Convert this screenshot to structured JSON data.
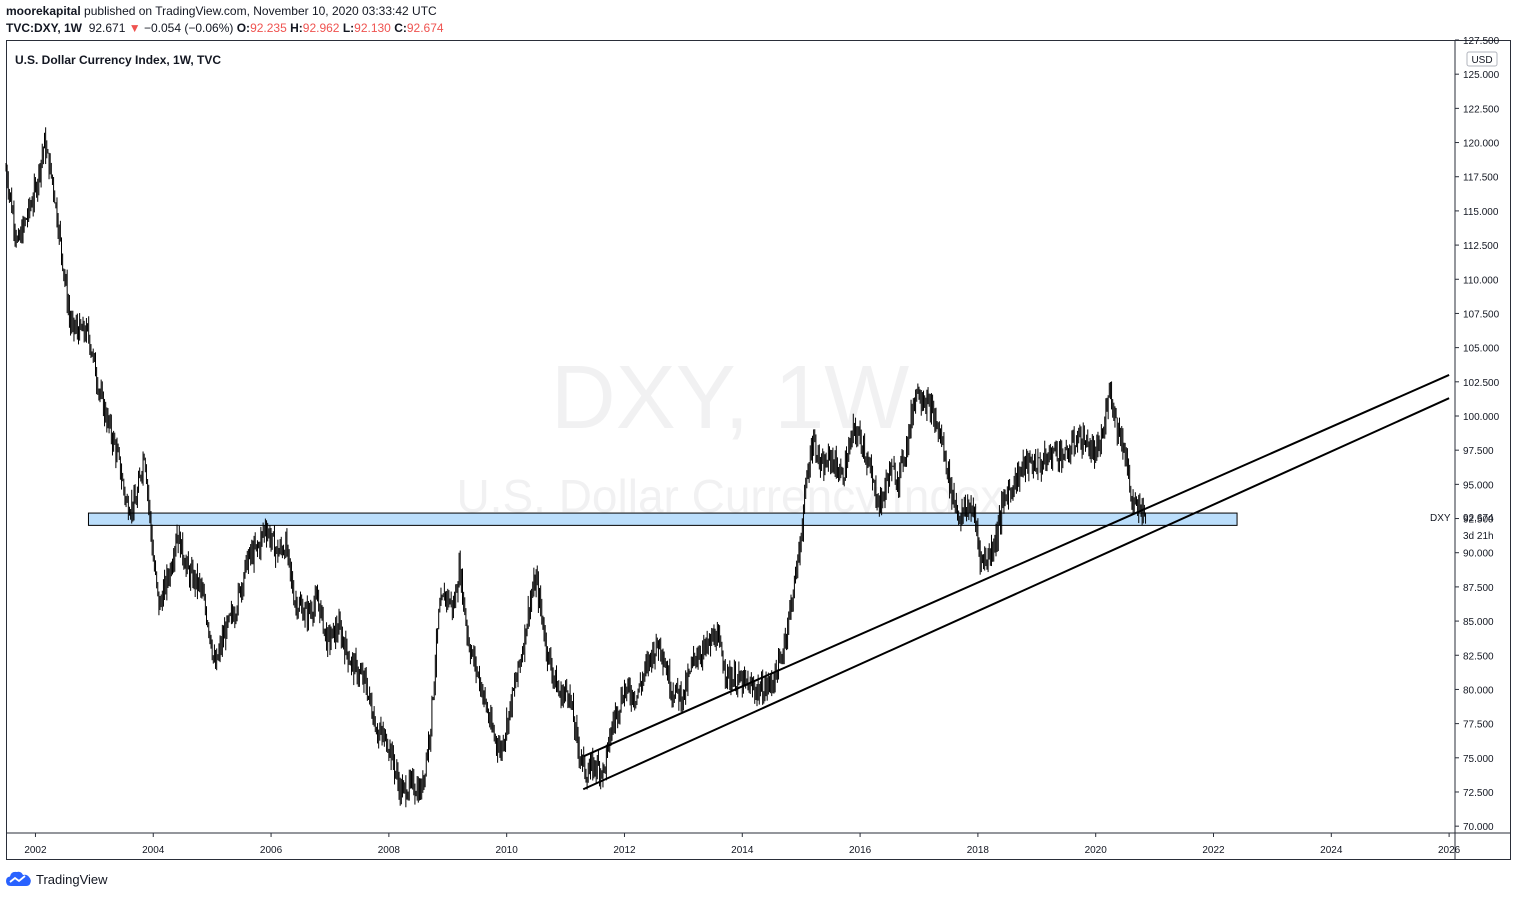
{
  "header": {
    "publisher": "moorekapital",
    "published_text": "published on TradingView.com, November 10, 2020 03:33:42 UTC",
    "symbol_tf": "TVC:DXY, 1W",
    "last": "92.671",
    "change": "−0.054 (−0.06%)",
    "o_label": "O:",
    "o_val": "92.235",
    "h_label": "H:",
    "h_val": "92.962",
    "l_label": "L:",
    "l_val": "92.130",
    "c_label": "C:",
    "c_val": "92.674"
  },
  "chart_title": "U.S. Dollar Currency Index, 1W, TVC",
  "watermark": {
    "line1": "DXY, 1W",
    "line2": "U.S. Dollar Currency Index"
  },
  "price_axis": {
    "unit": "USD",
    "ticker_label": "DXY",
    "last_price": "92.674",
    "countdown": "3d 21h"
  },
  "footer": {
    "brand": "TradingView"
  },
  "colors": {
    "candles": "#000000",
    "zone_fill": "#bbdefb",
    "zone_stroke": "#000000",
    "trendline": "#000000",
    "down_arrow": "#ef5350"
  },
  "chart_data": {
    "type": "candlestick",
    "title": "U.S. Dollar Currency Index, 1W, TVC",
    "timeframe": "1W",
    "ylim": [
      69.5,
      127.5
    ],
    "xlim": [
      2001.5,
      2026.1
    ],
    "y_ticks": [
      "70.000",
      "72.500",
      "75.000",
      "77.500",
      "80.000",
      "82.500",
      "85.000",
      "87.500",
      "90.000",
      "92.500",
      "95.000",
      "97.500",
      "100.000",
      "102.500",
      "105.000",
      "107.500",
      "110.000",
      "112.500",
      "115.000",
      "117.500",
      "120.000",
      "122.500",
      "125.000",
      "127.500"
    ],
    "x_ticks": [
      "2002",
      "2004",
      "2006",
      "2008",
      "2010",
      "2012",
      "2014",
      "2016",
      "2018",
      "2020",
      "2022",
      "2024",
      "2026"
    ],
    "price_path": [
      [
        2001.5,
        118.0
      ],
      [
        2001.7,
        112.5
      ],
      [
        2002.0,
        116.5
      ],
      [
        2002.15,
        120.0
      ],
      [
        2002.3,
        117.0
      ],
      [
        2002.6,
        106.5
      ],
      [
        2002.9,
        106.0
      ],
      [
        2003.1,
        101.5
      ],
      [
        2003.4,
        97.0
      ],
      [
        2003.55,
        93.5
      ],
      [
        2003.7,
        93.5
      ],
      [
        2003.85,
        97.5
      ],
      [
        2004.0,
        89.5
      ],
      [
        2004.1,
        86.0
      ],
      [
        2004.3,
        89.0
      ],
      [
        2004.4,
        91.5
      ],
      [
        2004.6,
        88.5
      ],
      [
        2004.8,
        87.5
      ],
      [
        2004.95,
        84.5
      ],
      [
        2005.05,
        81.5
      ],
      [
        2005.2,
        84.0
      ],
      [
        2005.4,
        86.0
      ],
      [
        2005.6,
        89.5
      ],
      [
        2005.8,
        90.5
      ],
      [
        2005.9,
        92.0
      ],
      [
        2006.1,
        90.0
      ],
      [
        2006.25,
        90.5
      ],
      [
        2006.4,
        86.5
      ],
      [
        2006.6,
        85.5
      ],
      [
        2006.8,
        86.5
      ],
      [
        2006.95,
        83.5
      ],
      [
        2007.15,
        84.5
      ],
      [
        2007.35,
        82.0
      ],
      [
        2007.6,
        80.5
      ],
      [
        2007.8,
        77.0
      ],
      [
        2008.0,
        76.0
      ],
      [
        2008.2,
        72.5
      ],
      [
        2008.4,
        73.0
      ],
      [
        2008.55,
        72.5
      ],
      [
        2008.7,
        77.0
      ],
      [
        2008.85,
        85.5
      ],
      [
        2008.95,
        87.0
      ],
      [
        2009.1,
        86.0
      ],
      [
        2009.2,
        89.0
      ],
      [
        2009.35,
        83.5
      ],
      [
        2009.55,
        80.5
      ],
      [
        2009.75,
        77.0
      ],
      [
        2009.9,
        75.5
      ],
      [
        2010.05,
        78.5
      ],
      [
        2010.25,
        82.5
      ],
      [
        2010.4,
        86.5
      ],
      [
        2010.5,
        88.0
      ],
      [
        2010.7,
        82.5
      ],
      [
        2010.9,
        79.5
      ],
      [
        2011.05,
        80.0
      ],
      [
        2011.2,
        76.0
      ],
      [
        2011.35,
        73.8
      ],
      [
        2011.5,
        74.5
      ],
      [
        2011.65,
        74.0
      ],
      [
        2011.8,
        77.5
      ],
      [
        2012.0,
        80.0
      ],
      [
        2012.2,
        79.5
      ],
      [
        2012.45,
        82.5
      ],
      [
        2012.6,
        83.5
      ],
      [
        2012.8,
        80.0
      ],
      [
        2013.0,
        79.5
      ],
      [
        2013.2,
        82.5
      ],
      [
        2013.4,
        83.0
      ],
      [
        2013.55,
        84.0
      ],
      [
        2013.75,
        81.0
      ],
      [
        2014.0,
        80.5
      ],
      [
        2014.2,
        80.0
      ],
      [
        2014.35,
        80.0
      ],
      [
        2014.5,
        80.5
      ],
      [
        2014.65,
        82.0
      ],
      [
        2014.8,
        85.5
      ],
      [
        2014.95,
        89.5
      ],
      [
        2015.1,
        95.5
      ],
      [
        2015.2,
        98.5
      ],
      [
        2015.35,
        96.0
      ],
      [
        2015.5,
        97.0
      ],
      [
        2015.7,
        95.5
      ],
      [
        2015.9,
        99.0
      ],
      [
        2016.05,
        98.0
      ],
      [
        2016.25,
        94.5
      ],
      [
        2016.35,
        93.5
      ],
      [
        2016.5,
        96.0
      ],
      [
        2016.65,
        95.5
      ],
      [
        2016.8,
        98.0
      ],
      [
        2016.95,
        102.0
      ],
      [
        2017.05,
        101.5
      ],
      [
        2017.2,
        100.5
      ],
      [
        2017.4,
        98.0
      ],
      [
        2017.55,
        94.5
      ],
      [
        2017.7,
        92.5
      ],
      [
        2017.85,
        93.5
      ],
      [
        2017.95,
        92.5
      ],
      [
        2018.05,
        89.5
      ],
      [
        2018.15,
        89.5
      ],
      [
        2018.3,
        91.0
      ],
      [
        2018.45,
        94.0
      ],
      [
        2018.6,
        95.0
      ],
      [
        2018.8,
        96.5
      ],
      [
        2018.95,
        96.5
      ],
      [
        2019.1,
        96.5
      ],
      [
        2019.3,
        97.5
      ],
      [
        2019.5,
        97.0
      ],
      [
        2019.7,
        98.5
      ],
      [
        2019.85,
        98.0
      ],
      [
        2020.0,
        97.0
      ],
      [
        2020.15,
        99.0
      ],
      [
        2020.22,
        102.5
      ],
      [
        2020.35,
        99.5
      ],
      [
        2020.5,
        97.5
      ],
      [
        2020.6,
        94.0
      ],
      [
        2020.7,
        93.0
      ],
      [
        2020.8,
        93.5
      ],
      [
        2020.86,
        92.67
      ]
    ],
    "support_zone": {
      "from": 2002.9,
      "to": 2022.4,
      "low": 92.0,
      "high": 92.9
    },
    "trendlines": [
      {
        "start": [
          2011.3,
          72.7
        ],
        "end": [
          2026.0,
          101.3
        ]
      },
      {
        "start": [
          2011.3,
          75.1
        ],
        "end": [
          2026.0,
          103.0
        ]
      }
    ],
    "last_value": 92.674
  }
}
